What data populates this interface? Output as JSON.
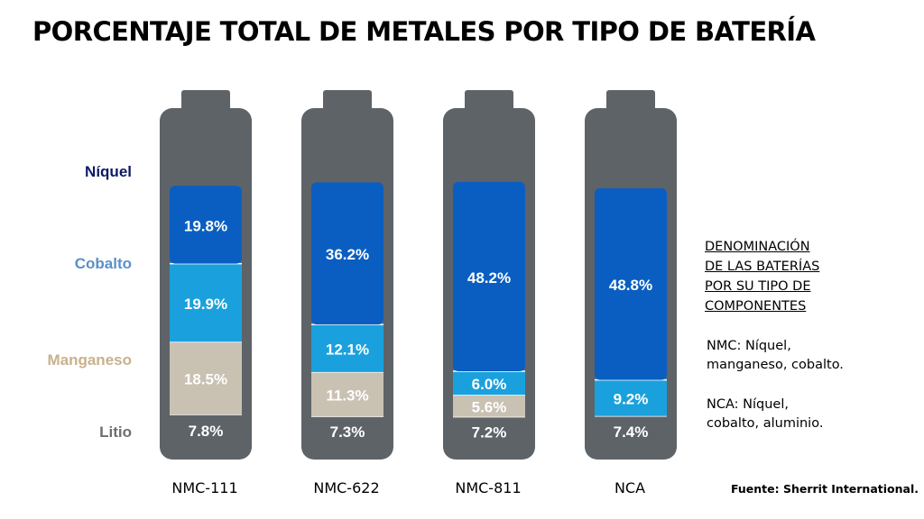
{
  "chart_data": {
    "type": "bar",
    "stacked": true,
    "title": "PORCENTAJE TOTAL DE METALES POR TIPO DE BATERÍA",
    "categories": [
      "NMC-111",
      "NMC-622",
      "NMC-811",
      "NCA"
    ],
    "series": [
      {
        "name": "Litio",
        "values": [
          7.8,
          7.3,
          7.2,
          7.4
        ],
        "labels": [
          "7.8%",
          "7.3%",
          "7.2%",
          "7.4%"
        ],
        "color": "#5e6368",
        "label_color": "#ffffff"
      },
      {
        "name": "Manganeso",
        "values": [
          18.5,
          11.3,
          5.6,
          null
        ],
        "labels": [
          "18.5%",
          "11.3%",
          "5.6%",
          ""
        ],
        "color": "#c9c1b2",
        "label_color": "#ffffff"
      },
      {
        "name": "Cobalto",
        "values": [
          19.9,
          12.1,
          6.0,
          9.2
        ],
        "labels": [
          "19.9%",
          "12.1%",
          "6.0%",
          "9.2%"
        ],
        "color": "#1aa1dd",
        "label_color": "#ffffff"
      },
      {
        "name": "Níquel",
        "values": [
          19.8,
          36.2,
          48.2,
          48.8
        ],
        "labels": [
          "19.8%",
          "36.2%",
          "48.2%",
          "48.8%"
        ],
        "color": "#0a5ec1",
        "label_color": "#ffffff"
      }
    ],
    "row_labels": [
      {
        "name": "Níquel",
        "color": "#0d1a66"
      },
      {
        "name": "Cobalto",
        "color": "#5b8fc7"
      },
      {
        "name": "Manganeso",
        "color": "#c8b18c"
      },
      {
        "name": "Litio",
        "color": "#6b6e72"
      }
    ],
    "battery_shell_color": "#5e6368",
    "grid": false
  },
  "legend": {
    "title_lines": [
      "DENOMINACIÓN",
      "DE LAS BATERÍAS",
      "POR SU TIPO DE",
      "COMPONENTES"
    ],
    "nmc_lines": [
      "NMC: Níquel,",
      "manganeso, cobalto."
    ],
    "nca_lines": [
      "NCA: Níquel,",
      "cobalto, aluminio."
    ]
  },
  "source": "Fuente: Sherrit International."
}
